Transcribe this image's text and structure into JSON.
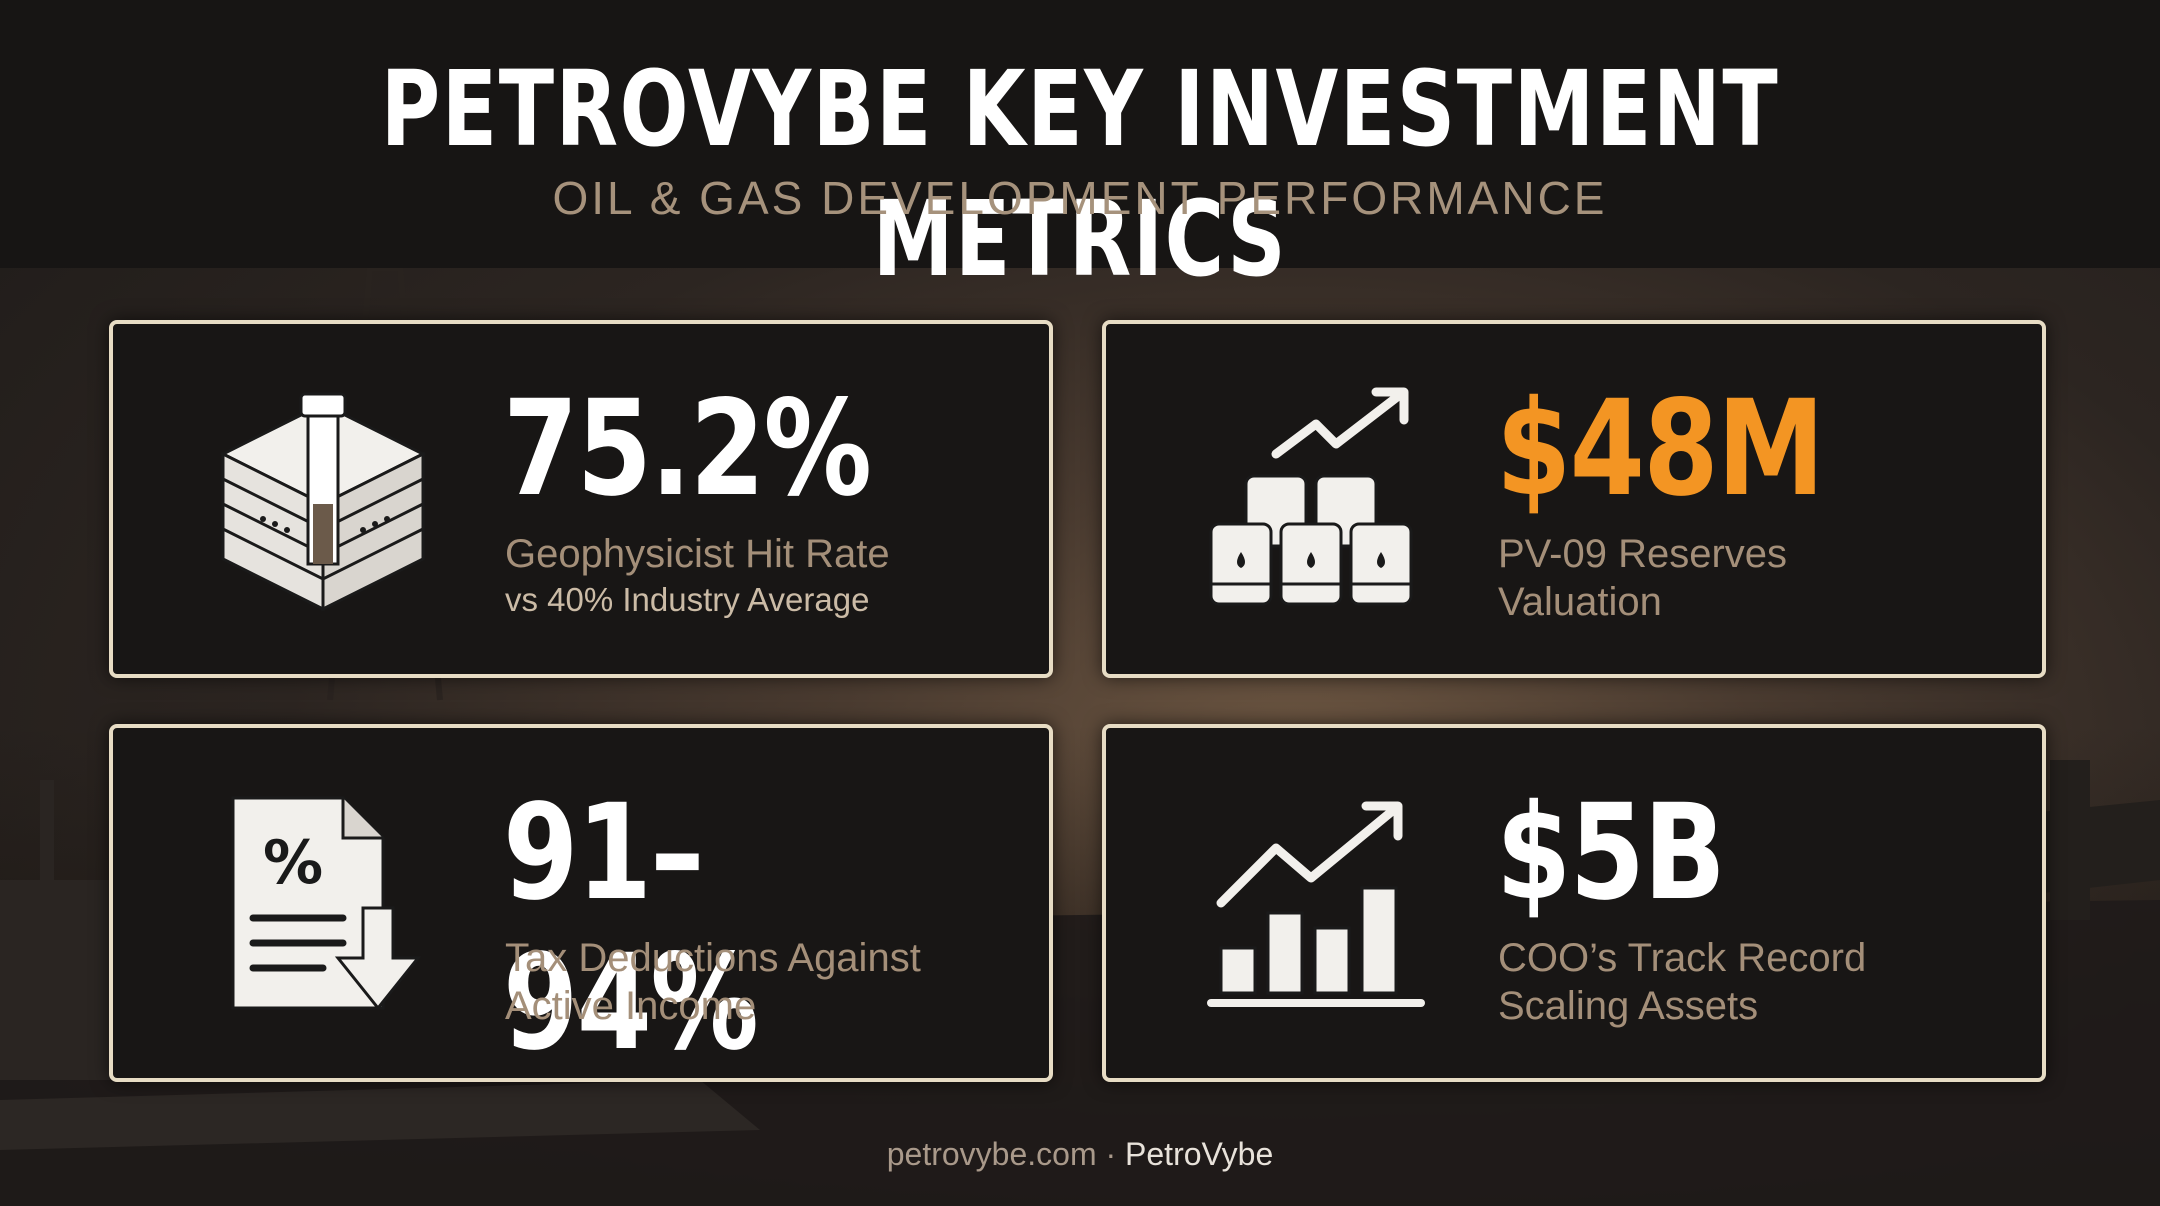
{
  "header": {
    "title": "PETROVYBE KEY INVESTMENT METRICS",
    "subtitle": "OIL & GAS DEVELOPMENT PERFORMANCE"
  },
  "metrics": [
    {
      "value": "75.2%",
      "label": "Geophysicist Hit Rate",
      "sublabel": "vs 40% Industry Average",
      "icon": "drill-core-icon",
      "color": "#ffffff"
    },
    {
      "value": "$48M",
      "label": "PV-09 Reserves",
      "label_line2": "Valuation",
      "icon": "oil-barrels-growth-icon",
      "color": "#f39523"
    },
    {
      "value": "91–94%",
      "label": "Tax Deductions Against",
      "label_line2": "Active Income",
      "icon": "tax-document-icon",
      "color": "#ffffff"
    },
    {
      "value": "$5B",
      "label": "COO’s Track Record",
      "label_line2": "Scaling Assets",
      "icon": "bar-chart-growth-icon",
      "color": "#ffffff"
    }
  ],
  "footer": {
    "site": "petrovybe.com",
    "separator": " · ",
    "brand": "PetroVybe"
  },
  "colors": {
    "accent": "#f39523",
    "card_border": "#e7dcc4",
    "card_bg": "#181615",
    "muted_text": "#a48f79"
  }
}
